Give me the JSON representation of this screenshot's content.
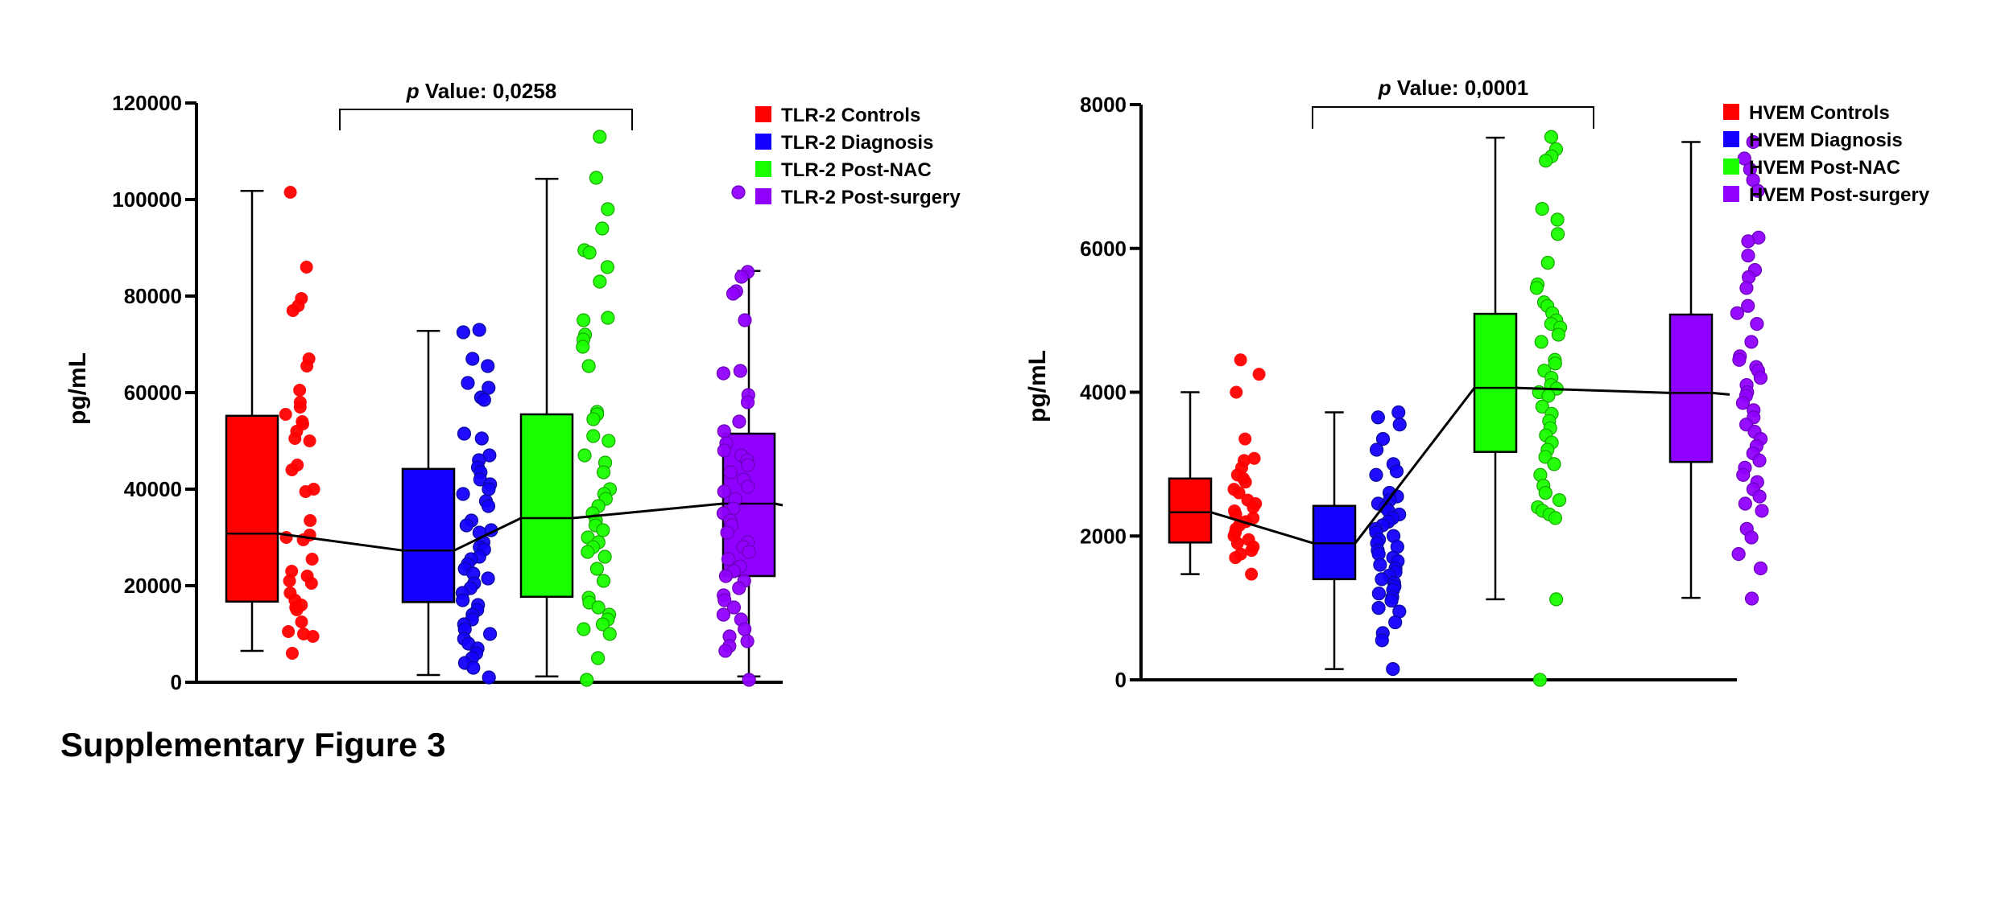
{
  "caption": "Supplementary Figure 3",
  "chart_data": [
    {
      "type": "box",
      "title": "",
      "ylabel": "pg/mL",
      "xlabel": "",
      "ylim": [
        0,
        120000
      ],
      "yticks": [
        0,
        20000,
        40000,
        60000,
        80000,
        100000,
        120000
      ],
      "ytick_labels": [
        "0",
        "20000",
        "40000",
        "60000",
        "80000",
        "100000",
        "120000"
      ],
      "legend_position": "top-right",
      "annotation": {
        "italic": "p",
        "text": " Value: 0,0258",
        "between": [
          "TLR-2 Diagnosis",
          "TLR-2 Post-NAC"
        ]
      },
      "series": [
        {
          "name": "TLR-2 Controls",
          "color": "#ff0000",
          "whisker_low": 6500,
          "q1": 16700,
          "median": 30800,
          "q3": 55200,
          "whisker_high": 101800,
          "points": [
            101500,
            86000,
            79500,
            78000,
            77000,
            67000,
            65500,
            60500,
            58000,
            57000,
            55500,
            54000,
            53500,
            52000,
            50000,
            50500,
            45000,
            44000,
            40000,
            39500,
            33500,
            30500,
            30000,
            29500,
            25500,
            23000,
            22000,
            21000,
            20500,
            18500,
            17000,
            16000,
            15500,
            15000,
            12500,
            10500,
            10000,
            9500,
            6000
          ]
        },
        {
          "name": "TLR-2 Diagnosis",
          "color": "#1400ff",
          "whisker_low": 1500,
          "q1": 16600,
          "median": 27300,
          "q3": 44200,
          "whisker_high": 72800,
          "points": [
            73000,
            72500,
            67000,
            65500,
            62000,
            61000,
            59000,
            58500,
            51500,
            50500,
            47000,
            46000,
            44500,
            43500,
            42000,
            41000,
            40000,
            39000,
            37500,
            36500,
            33500,
            32500,
            31500,
            31000,
            29000,
            28000,
            27500,
            26000,
            25500,
            24500,
            23500,
            22500,
            21500,
            20500,
            19500,
            18500,
            17000,
            16000,
            15000,
            14000,
            13000,
            12000,
            11000,
            10000,
            9000,
            8000,
            7000,
            6000,
            5000,
            4000,
            3000,
            1000
          ]
        },
        {
          "name": "TLR-2 Post-NAC",
          "color": "#1aff00",
          "whisker_low": 1200,
          "q1": 17700,
          "median": 34000,
          "q3": 55500,
          "whisker_high": 104300,
          "points": [
            113000,
            104500,
            98000,
            94000,
            89500,
            89000,
            86000,
            83000,
            75500,
            75000,
            72000,
            71000,
            69500,
            65500,
            56000,
            55500,
            54500,
            51000,
            50000,
            47000,
            45500,
            43500,
            40000,
            39000,
            38000,
            36500,
            35000,
            33500,
            32500,
            31500,
            30000,
            29000,
            28000,
            27000,
            26000,
            23500,
            21000,
            17500,
            16500,
            15500,
            14000,
            13000,
            12000,
            11000,
            10000,
            5000,
            500
          ]
        },
        {
          "name": "TLR-2 Post-surgery",
          "color": "#9000ff",
          "whisker_low": 1200,
          "q1": 22000,
          "median": 37000,
          "q3": 51500,
          "whisker_high": 85200,
          "points": [
            101500,
            85000,
            84000,
            81000,
            80500,
            75000,
            64500,
            64000,
            59500,
            58000,
            54000,
            52000,
            49500,
            48000,
            47000,
            46000,
            45000,
            43500,
            42000,
            40500,
            39500,
            38000,
            36000,
            35000,
            33500,
            32500,
            31000,
            29000,
            28000,
            27000,
            25500,
            24000,
            23000,
            22000,
            21000,
            19500,
            18000,
            17000,
            15500,
            14000,
            13000,
            11000,
            9500,
            8500,
            7500,
            6500,
            500
          ]
        }
      ],
      "median_line": true
    },
    {
      "type": "box",
      "title": "",
      "ylabel": "pg/mL",
      "xlabel": "",
      "ylim": [
        0,
        8000
      ],
      "yticks": [
        0,
        2000,
        4000,
        6000,
        8000
      ],
      "ytick_labels": [
        "0",
        "2000",
        "4000",
        "6000",
        "8000"
      ],
      "legend_position": "top-right",
      "annotation": {
        "italic": "p",
        "text": " Value: 0,0001",
        "between": [
          "HVEM Diagnosis",
          "HVEM Post-NAC"
        ]
      },
      "series": [
        {
          "name": "HVEM Controls",
          "color": "#ff0000",
          "whisker_low": 1470,
          "q1": 1910,
          "median": 2330,
          "q3": 2800,
          "whisker_high": 4000,
          "points": [
            4450,
            4250,
            4000,
            3350,
            3080,
            3050,
            2950,
            2850,
            2800,
            2750,
            2650,
            2600,
            2500,
            2450,
            2400,
            2350,
            2300,
            2250,
            2200,
            2150,
            2100,
            2050,
            2000,
            1950,
            1900,
            1850,
            1800,
            1750,
            1700,
            1470
          ]
        },
        {
          "name": "HVEM Diagnosis",
          "color": "#1400ff",
          "whisker_low": 150,
          "q1": 1400,
          "median": 1900,
          "q3": 2420,
          "whisker_high": 3720,
          "points": [
            3720,
            3650,
            3550,
            3350,
            3200,
            3000,
            2900,
            2850,
            2600,
            2550,
            2500,
            2450,
            2400,
            2350,
            2300,
            2250,
            2200,
            2150,
            2100,
            2050,
            2000,
            1950,
            1900,
            1850,
            1800,
            1750,
            1700,
            1650,
            1600,
            1550,
            1500,
            1450,
            1400,
            1350,
            1300,
            1250,
            1200,
            1150,
            1100,
            1000,
            950,
            800,
            650,
            550,
            150
          ]
        },
        {
          "name": "HVEM Post-NAC",
          "color": "#1aff00",
          "whisker_low": 1120,
          "q1": 3170,
          "median": 4060,
          "q3": 5090,
          "whisker_high": 7540,
          "points": [
            7550,
            7380,
            7280,
            7220,
            6550,
            6400,
            6200,
            5800,
            5500,
            5450,
            5250,
            5200,
            5100,
            5000,
            4950,
            4900,
            4800,
            4700,
            4450,
            4400,
            4300,
            4200,
            4100,
            4050,
            4000,
            3950,
            3800,
            3700,
            3600,
            3500,
            3400,
            3300,
            3200,
            3100,
            3000,
            2850,
            2700,
            2600,
            2500,
            2400,
            2350,
            2300,
            2250,
            1120,
            0
          ]
        },
        {
          "name": "HVEM Post-surgery",
          "color": "#9000ff",
          "whisker_low": 1140,
          "q1": 3030,
          "median": 3990,
          "q3": 5080,
          "whisker_high": 7480,
          "points": [
            7480,
            7250,
            7100,
            6950,
            6800,
            6150,
            6100,
            5900,
            5700,
            5600,
            5450,
            5200,
            5100,
            4950,
            4700,
            4500,
            4450,
            4350,
            4300,
            4200,
            4100,
            4000,
            3950,
            3850,
            3750,
            3650,
            3550,
            3450,
            3350,
            3250,
            3150,
            3050,
            2950,
            2850,
            2750,
            2650,
            2550,
            2450,
            2350,
            2100,
            1980,
            1750,
            1550,
            1130
          ]
        }
      ],
      "median_line": true
    }
  ]
}
